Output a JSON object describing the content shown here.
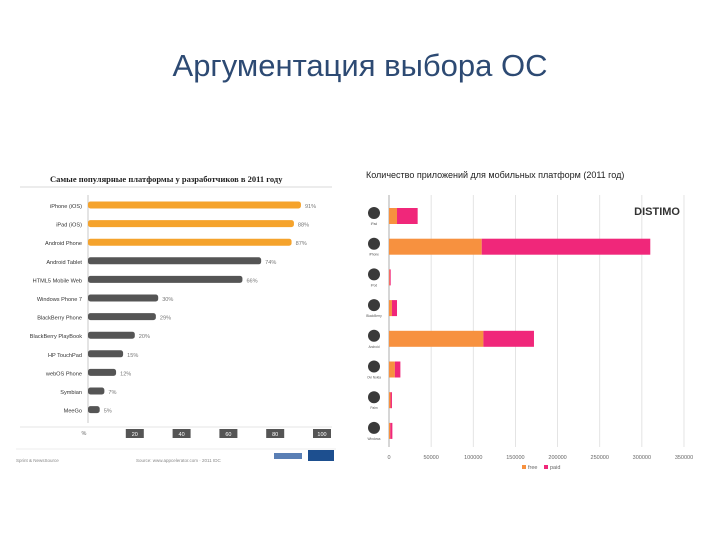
{
  "slide": {
    "title": "Аргументация выбора ОС"
  },
  "chart_data": [
    {
      "type": "bar",
      "orientation": "horizontal",
      "title": "Самые популярные платформы у разработчиков в 2011 году",
      "categories": [
        "iPhone (iOS)",
        "iPad (iOS)",
        "Android Phone",
        "Android Tablet",
        "HTML5 Mobile Web",
        "Windows Phone 7",
        "BlackBerry Phone",
        "BlackBerry PlayBook",
        "HP TouchPad",
        "webOS Phone",
        "Symbian",
        "MeeGo"
      ],
      "values": [
        91,
        88,
        87,
        74,
        66,
        30,
        29,
        20,
        15,
        12,
        7,
        5
      ],
      "value_labels": [
        "91%",
        "88%",
        "87%",
        "74%",
        "66%",
        "30%",
        "29%",
        "20%",
        "15%",
        "12%",
        "7%",
        "5%"
      ],
      "colors": [
        "#f5a32c",
        "#f5a32c",
        "#f5a32c",
        "#555555",
        "#555555",
        "#555555",
        "#555555",
        "#555555",
        "#555555",
        "#555555",
        "#555555",
        "#555555"
      ],
      "xlim": [
        0,
        100
      ],
      "x_ticks": [
        "%",
        "20",
        "40",
        "60",
        "80",
        "100"
      ],
      "footer": {
        "left": "Sprint & NewsSource",
        "center": "Source: www.appcelerator.com · 2011 IDC"
      }
    },
    {
      "type": "bar",
      "orientation": "horizontal",
      "stacked": true,
      "title": "Количество приложений для мобильных платформ (2011 год)",
      "categories": [
        "iPad",
        "iPhone",
        "iPod",
        "BlackBerry",
        "Android",
        "Ovi Nokia",
        "Palm",
        "Windows"
      ],
      "series": [
        {
          "name": "free",
          "color": "#f7913f",
          "values": [
            9500,
            110000,
            700,
            3500,
            112000,
            7000,
            1800,
            1500
          ]
        },
        {
          "name": "paid",
          "color": "#f0277a",
          "values": [
            24500,
            200000,
            1300,
            6000,
            60000,
            6500,
            1700,
            2500
          ]
        }
      ],
      "xlim": [
        0,
        350000
      ],
      "x_ticks": [
        "0",
        "50000",
        "100000",
        "150000",
        "200000",
        "250000",
        "300000",
        "350000"
      ],
      "brand": "DISTIMO"
    }
  ]
}
